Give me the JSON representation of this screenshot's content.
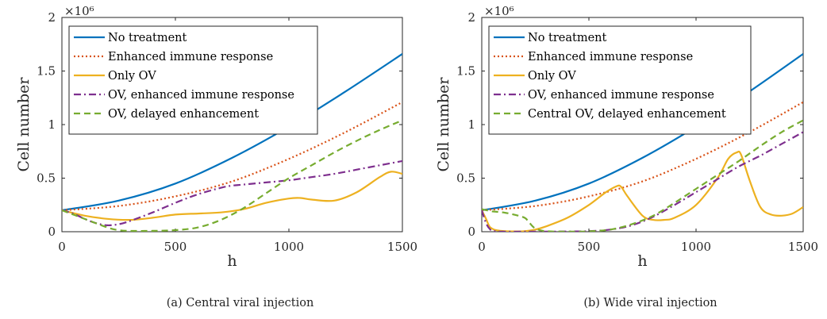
{
  "chart_data": [
    {
      "type": "line",
      "caption": "(a) Central viral injection",
      "xlabel": "h",
      "ylabel": "Cell number",
      "exponent": "×10⁶",
      "xlim": [
        0,
        1500
      ],
      "ylim": [
        0,
        2000000
      ],
      "xticks": [
        "0",
        "500",
        "1000",
        "1500"
      ],
      "yticks": [
        "0",
        "0.5",
        "1",
        "1.5",
        "2"
      ],
      "legend_position": "top-left",
      "series": [
        {
          "name": "No treatment",
          "color": "#0072BD",
          "dash": "solid",
          "x": [
            0,
            250,
            500,
            750,
            1000,
            1250,
            1500
          ],
          "y": [
            200000,
            290000,
            450000,
            690000,
            980000,
            1310000,
            1660000
          ]
        },
        {
          "name": "Enhanced immune response",
          "color": "#D95319",
          "dash": "dotted",
          "x": [
            0,
            250,
            500,
            750,
            1000,
            1250,
            1500
          ],
          "y": [
            200000,
            240000,
            330000,
            470000,
            680000,
            930000,
            1210000
          ]
        },
        {
          "name": "Only OV",
          "color": "#EDB120",
          "dash": "solid",
          "x": [
            0,
            100,
            200,
            300,
            400,
            500,
            600,
            700,
            800,
            900,
            1000,
            1050,
            1100,
            1200,
            1300,
            1400,
            1450,
            1500
          ],
          "y": [
            200000,
            150000,
            120000,
            110000,
            130000,
            160000,
            170000,
            180000,
            210000,
            270000,
            310000,
            315000,
            300000,
            290000,
            370000,
            510000,
            560000,
            540000
          ]
        },
        {
          "name": "OV, enhanced immune response",
          "color": "#7E2F8E",
          "dash": "dashdot",
          "x": [
            0,
            50,
            100,
            150,
            200,
            250,
            300,
            400,
            500,
            600,
            700,
            750,
            800,
            900,
            1000,
            1100,
            1200,
            1300,
            1400,
            1500
          ],
          "y": [
            200000,
            170000,
            120000,
            80000,
            60000,
            70000,
            100000,
            180000,
            270000,
            350000,
            410000,
            430000,
            440000,
            460000,
            480000,
            510000,
            540000,
            580000,
            620000,
            660000
          ]
        },
        {
          "name": "OV, delayed enhancement",
          "color": "#77AC30",
          "dash": "dashed",
          "x": [
            0,
            100,
            200,
            250,
            300,
            400,
            500,
            600,
            700,
            800,
            900,
            1000,
            1100,
            1200,
            1300,
            1400,
            1500
          ],
          "y": [
            200000,
            120000,
            40000,
            15000,
            8000,
            8000,
            15000,
            40000,
            110000,
            220000,
            360000,
            500000,
            620000,
            740000,
            850000,
            950000,
            1040000
          ]
        }
      ]
    },
    {
      "type": "line",
      "caption": "(b) Wide viral injection",
      "xlabel": "h",
      "ylabel": "Cell number",
      "exponent": "×10⁶",
      "xlim": [
        0,
        1500
      ],
      "ylim": [
        0,
        2000000
      ],
      "xticks": [
        "0",
        "500",
        "1000",
        "1500"
      ],
      "yticks": [
        "0",
        "0.5",
        "1",
        "1.5",
        "2"
      ],
      "legend_position": "top-left",
      "series": [
        {
          "name": "No treatment",
          "color": "#0072BD",
          "dash": "solid",
          "x": [
            0,
            250,
            500,
            750,
            1000,
            1250,
            1500
          ],
          "y": [
            200000,
            290000,
            450000,
            690000,
            980000,
            1310000,
            1660000
          ]
        },
        {
          "name": "Enhanced immune response",
          "color": "#D95319",
          "dash": "dotted",
          "x": [
            0,
            250,
            500,
            750,
            1000,
            1250,
            1500
          ],
          "y": [
            200000,
            240000,
            330000,
            470000,
            680000,
            930000,
            1210000
          ]
        },
        {
          "name": "Only OV",
          "color": "#EDB120",
          "dash": "solid",
          "x": [
            0,
            20,
            40,
            80,
            150,
            200,
            250,
            300,
            400,
            500,
            580,
            630,
            650,
            680,
            750,
            800,
            850,
            900,
            1000,
            1100,
            1150,
            1190,
            1210,
            1250,
            1300,
            1350,
            1400,
            1450,
            1500
          ],
          "y": [
            200000,
            120000,
            40000,
            10000,
            3000,
            5000,
            20000,
            50000,
            130000,
            250000,
            370000,
            425000,
            420000,
            330000,
            150000,
            110000,
            110000,
            130000,
            250000,
            500000,
            680000,
            740000,
            720000,
            480000,
            230000,
            160000,
            150000,
            170000,
            230000
          ]
        },
        {
          "name": "OV, enhanced immune response",
          "color": "#7E2F8E",
          "dash": "dashdot",
          "x": [
            0,
            20,
            40,
            60,
            100,
            200,
            300,
            400,
            500,
            600,
            700,
            800,
            900,
            1000,
            1100,
            1200,
            1300,
            1400,
            1500
          ],
          "y": [
            200000,
            80000,
            20000,
            5000,
            1000,
            1000,
            1000,
            2000,
            5000,
            20000,
            60000,
            140000,
            250000,
            370000,
            490000,
            610000,
            710000,
            820000,
            930000
          ]
        },
        {
          "name": "Central OV, delayed enhancement",
          "color": "#77AC30",
          "dash": "dashed",
          "x": [
            0,
            50,
            100,
            150,
            200,
            220,
            250,
            300,
            400,
            500,
            600,
            700,
            800,
            900,
            1000,
            1100,
            1200,
            1300,
            1400,
            1500
          ],
          "y": [
            210000,
            190000,
            180000,
            160000,
            130000,
            90000,
            30000,
            5000,
            1000,
            4000,
            20000,
            70000,
            150000,
            270000,
            400000,
            530000,
            660000,
            800000,
            930000,
            1040000
          ]
        }
      ]
    }
  ]
}
